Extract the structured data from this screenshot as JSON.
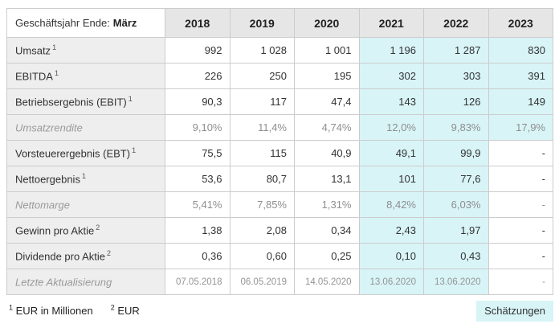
{
  "header": {
    "label_prefix": "Geschäftsjahr Ende:",
    "label_emphasis": "März",
    "years": [
      "2018",
      "2019",
      "2020",
      "2021",
      "2022",
      "2023"
    ]
  },
  "rows": [
    {
      "label": "Umsatz",
      "sup": "1",
      "values": [
        "992",
        "1 028",
        "1 001",
        "1 196",
        "1 287",
        "830"
      ]
    },
    {
      "label": "EBITDA",
      "sup": "1",
      "values": [
        "226",
        "250",
        "195",
        "302",
        "303",
        "391"
      ]
    },
    {
      "label": "Betriebsergebnis (EBIT)",
      "sup": "1",
      "values": [
        "90,3",
        "117",
        "47,4",
        "143",
        "126",
        "149"
      ]
    },
    {
      "label": "Umsatzrendite",
      "values": [
        "9,10%",
        "11,4%",
        "4,74%",
        "12,0%",
        "9,83%",
        "17,9%"
      ]
    },
    {
      "label": "Vorsteuerergebnis (EBT)",
      "sup": "1",
      "values": [
        "75,5",
        "115",
        "40,9",
        "49,1",
        "99,9",
        "-"
      ]
    },
    {
      "label": "Nettoergebnis",
      "sup": "1",
      "values": [
        "53,6",
        "80,7",
        "13,1",
        "101",
        "77,6",
        "-"
      ]
    },
    {
      "label": "Nettomarge",
      "values": [
        "5,41%",
        "7,85%",
        "1,31%",
        "8,42%",
        "6,03%",
        "-"
      ]
    },
    {
      "label": "Gewinn pro Aktie",
      "sup": "2",
      "values": [
        "1,38",
        "2,08",
        "0,34",
        "2,43",
        "1,97",
        "-"
      ]
    },
    {
      "label": "Dividende pro Aktie",
      "sup": "2",
      "values": [
        "0,36",
        "0,60",
        "0,25",
        "0,10",
        "0,43",
        "-"
      ]
    },
    {
      "label": "Letzte Aktualisierung",
      "values": [
        "07.05.2018",
        "06.05.2019",
        "14.05.2020",
        "13.06.2020",
        "13.06.2020",
        "-"
      ]
    }
  ],
  "footnotes": {
    "note1_sup": "1",
    "note1_text": "EUR in Millionen",
    "note2_sup": "2",
    "note2_text": "EUR"
  },
  "legend": {
    "estimates": "Schätzungen"
  },
  "colors": {
    "estimate_bg": "#d8f4f7",
    "header_bg": "#e6e6e6",
    "label_column_bg": "#eeeeee",
    "border": "#cccccc",
    "text": "#333333",
    "muted_text": "#949494"
  }
}
